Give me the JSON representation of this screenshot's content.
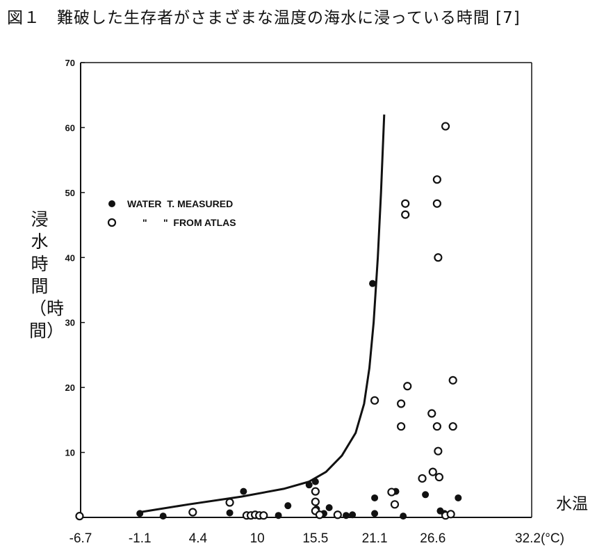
{
  "title": "図１　難破した生存者がさまざまな温度の海水に浸っている時間 [7]",
  "y_axis_label": "浸水時間（時間）",
  "x_axis_label": "水温",
  "chart_data": {
    "type": "scatter",
    "title": "図１　難破した生存者がさまざまな温度の海水に浸っている時間 [7]",
    "xlabel": "水温",
    "xunit": "(°C)",
    "ylabel": "浸水時間（時間）",
    "xlim": [
      -6.7,
      32.2
    ],
    "ylim": [
      0,
      70
    ],
    "x_ticks": [
      "-6.7",
      "-1.1",
      "4.4",
      "10",
      "15.5",
      "21.1",
      "26.6",
      "32.2(°C)"
    ],
    "y_ticks": [
      "0",
      "10",
      "20",
      "30",
      "40",
      "50",
      "60",
      "70"
    ],
    "grid": false,
    "legend_position": "top-left",
    "series": [
      {
        "name": "WATER T. MEASURED",
        "marker": "filled-circle",
        "points": [
          [
            -1.1,
            0.6
          ],
          [
            1.1,
            0.2
          ],
          [
            7.4,
            0.7
          ],
          [
            8.7,
            4.0
          ],
          [
            12.0,
            0.3
          ],
          [
            12.9,
            1.8
          ],
          [
            14.9,
            5.0
          ],
          [
            15.5,
            5.5
          ],
          [
            15.6,
            1.3
          ],
          [
            16.3,
            0.6
          ],
          [
            16.8,
            1.5
          ],
          [
            18.4,
            0.3
          ],
          [
            19.0,
            0.4
          ],
          [
            20.9,
            36.0
          ],
          [
            21.1,
            3.0
          ],
          [
            21.1,
            0.6
          ],
          [
            23.1,
            4.0
          ],
          [
            23.8,
            0.2
          ],
          [
            25.9,
            3.5
          ],
          [
            27.3,
            1.0
          ],
          [
            27.7,
            0.6
          ],
          [
            29.0,
            3.0
          ]
        ]
      },
      {
        "name": "WATER T. FROM ATLAS",
        "marker": "open-circle",
        "points": [
          [
            -6.8,
            0.2
          ],
          [
            3.9,
            0.8
          ],
          [
            7.4,
            2.3
          ],
          [
            9.0,
            0.3
          ],
          [
            9.4,
            0.3
          ],
          [
            9.8,
            0.4
          ],
          [
            10.2,
            0.3
          ],
          [
            10.6,
            0.3
          ],
          [
            15.5,
            4.0
          ],
          [
            15.5,
            2.4
          ],
          [
            15.5,
            1.0
          ],
          [
            15.9,
            0.4
          ],
          [
            17.6,
            0.4
          ],
          [
            21.1,
            18.0
          ],
          [
            22.7,
            3.9
          ],
          [
            23.0,
            2.0
          ],
          [
            23.6,
            17.5
          ],
          [
            23.6,
            14.0
          ],
          [
            24.0,
            48.3
          ],
          [
            24.0,
            46.6
          ],
          [
            24.2,
            20.2
          ],
          [
            25.6,
            6.0
          ],
          [
            26.5,
            16.0
          ],
          [
            26.6,
            7.0
          ],
          [
            27.0,
            52.0
          ],
          [
            27.0,
            48.3
          ],
          [
            27.0,
            14.0
          ],
          [
            27.1,
            40.0
          ],
          [
            27.1,
            10.2
          ],
          [
            27.2,
            6.2
          ],
          [
            27.8,
            60.2
          ],
          [
            27.8,
            0.3
          ],
          [
            28.3,
            0.5
          ],
          [
            28.5,
            21.1
          ],
          [
            28.5,
            14.0
          ]
        ]
      },
      {
        "name": "",
        "marker": "line",
        "points": [
          [
            -1.1,
            0.8
          ],
          [
            3.5,
            2.0
          ],
          [
            8.5,
            3.2
          ],
          [
            12.5,
            4.4
          ],
          [
            14.9,
            5.5
          ],
          [
            16.5,
            7.0
          ],
          [
            18.0,
            9.5
          ],
          [
            19.3,
            13.0
          ],
          [
            20.1,
            17.5
          ],
          [
            20.6,
            23.0
          ],
          [
            21.0,
            30.0
          ],
          [
            21.4,
            40.0
          ],
          [
            21.7,
            50.0
          ],
          [
            22.0,
            62.0
          ]
        ]
      }
    ],
    "legend": [
      {
        "symbol": "filled-circle",
        "text": "WATER  T. MEASURED"
      },
      {
        "symbol": "open-circle",
        "text": "\"      \"  FROM ATLAS"
      }
    ]
  }
}
